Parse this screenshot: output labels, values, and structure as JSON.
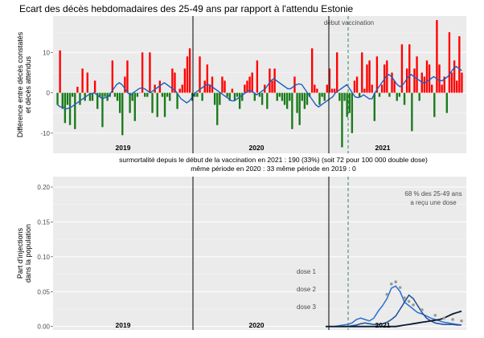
{
  "title": "Ecart des décès hebdomadaires des 25-49 ans par rapport à l'attendu Estonie",
  "annotations": {
    "line1": "surmortalité depuis le début de la vaccination en 2021 : 190  (33%)          (soit 72 pour 100 000 double dose)",
    "line2": "même période en 2020 : 33          même période en 2019 : 0"
  },
  "colors": {
    "excess": "#ff0000",
    "deficit": "#1a7a1a",
    "trend": "#1f5fbf",
    "dose1": "#2a6fcf",
    "dose2": "#1a4f9a",
    "dose3": "#0a1a33",
    "marker": "#999999",
    "pct_label": "#a020c0",
    "vaccination_line": "#2e8b57"
  },
  "chart_data": [
    {
      "type": "bar",
      "ylabel": "Différence entre décès constatés\net décès attendus",
      "ylim": [
        -15,
        19
      ],
      "yticks": [
        -10,
        0,
        10
      ],
      "grid": true,
      "year_labels": [
        "2019",
        "2020",
        "2021"
      ],
      "vaccination_label": "début vaccination",
      "values": [
        -3,
        10.5,
        -4,
        -7.5,
        -3,
        -8,
        -1,
        -9,
        1.5,
        -3,
        6,
        -2,
        5,
        -2,
        -2,
        3,
        -4,
        -1,
        -8.5,
        -1,
        -2,
        -1,
        8,
        -1,
        -2,
        -5,
        -10.5,
        4,
        8,
        -5,
        -2,
        -7,
        -1,
        0,
        10,
        -1,
        -1,
        10,
        -5,
        2,
        -6,
        3,
        -1,
        -6,
        -1,
        -2,
        6,
        5,
        -4,
        1,
        2,
        6,
        9,
        11,
        -2,
        -1,
        -1,
        9,
        -2,
        3,
        7,
        2,
        4,
        -3,
        -8,
        -3,
        4,
        3,
        -1,
        -2,
        1,
        -2,
        -1,
        -4,
        -2,
        2,
        3,
        4,
        5,
        -2,
        8,
        -1,
        -3,
        2,
        -4,
        6,
        3,
        6,
        -2,
        -1,
        -2,
        -3,
        -4,
        -2,
        -9,
        4,
        -5,
        -8,
        -2,
        -4,
        -3,
        -1,
        11,
        2,
        1,
        -3,
        -1,
        -2,
        2,
        6,
        1,
        1,
        10,
        -2,
        -13.5,
        -2,
        -6,
        -5,
        -10,
        3,
        4,
        -1,
        10,
        1,
        7,
        8,
        2,
        -7,
        9,
        -1,
        2,
        7,
        8,
        -1,
        5,
        3,
        -2,
        -1,
        12,
        -3,
        6,
        12,
        -9.5,
        6,
        9,
        -2,
        5,
        4,
        8,
        7,
        2,
        -6,
        18,
        7,
        2,
        4,
        -5,
        15,
        5,
        8,
        3,
        14,
        5
      ],
      "trend": [
        -3,
        -3.5,
        -3.5,
        -4,
        -3.8,
        -3.5,
        -3,
        -2.5,
        -2,
        -1.5,
        -1,
        -0.5,
        -0.2,
        0,
        -0.5,
        -1,
        -1.5,
        -1.2,
        -1,
        0,
        1,
        2,
        2.5,
        2,
        1,
        0,
        -0.5,
        0,
        0.5,
        1,
        1.2,
        1,
        0.5,
        0,
        0.5,
        1,
        1.5,
        2,
        2.5,
        2,
        1.5,
        1,
        0.5,
        -0.5,
        -1.5,
        -2,
        -2.5,
        -2,
        -1,
        0,
        0.5,
        1,
        1.5,
        2,
        2,
        1.5,
        1,
        0.5,
        0,
        -0.5,
        -1,
        -1.5,
        -2,
        -2,
        -1.5,
        -1,
        -0.5,
        0,
        0.5,
        0.5,
        0,
        -0.5,
        0,
        0.5,
        1,
        2,
        3,
        3.5,
        3,
        2.5,
        2,
        1.5,
        1,
        1,
        1.5,
        2,
        2.2,
        2,
        1,
        0,
        -1,
        -2,
        -3,
        -3.5,
        -3,
        -2.5,
        -2,
        -1.5,
        -1,
        0,
        0.5,
        1,
        1.5,
        2,
        1,
        0,
        -1,
        -1.2,
        -1,
        -0.5,
        -1,
        -1.5,
        -1.5,
        0,
        1,
        2,
        3,
        4,
        4.5,
        4,
        3,
        2,
        1.5,
        2,
        3,
        4,
        4.5,
        4,
        3.5,
        3,
        2.5,
        2.5,
        3,
        3.5,
        4,
        3.5,
        3,
        3,
        3.5,
        4,
        5,
        6,
        6.5,
        6,
        5.5
      ]
    },
    {
      "type": "line",
      "ylabel": "Part d'injections\ndans la population",
      "ylim": [
        -0.005,
        0.215
      ],
      "yticks": [
        "0.00",
        "0.05",
        "0.10",
        "0.15",
        "0.20"
      ],
      "grid": true,
      "year_labels": [
        "2019",
        "2020",
        "2021"
      ],
      "pct_label": "68 % des 25-49 ans\na reçu une dose",
      "series": [
        {
          "name": "dose 1",
          "values": [
            0,
            0,
            0,
            0.001,
            0.002,
            0.003,
            0.005,
            0.01,
            0.012,
            0.01,
            0.008,
            0.012,
            0.022,
            0.03,
            0.04,
            0.055,
            0.058,
            0.05,
            0.035,
            0.03,
            0.025,
            0.02,
            0.018,
            0.015,
            0.012,
            0.01,
            0.008,
            0.006,
            0.005,
            0.004,
            0.003,
            0.002
          ]
        },
        {
          "name": "dose 2",
          "values": [
            0,
            0,
            0,
            0,
            0,
            0,
            0.001,
            0.002,
            0.004,
            0.005,
            0.004,
            0.003,
            0.003,
            0.004,
            0.006,
            0.01,
            0.015,
            0.025,
            0.035,
            0.045,
            0.04,
            0.03,
            0.02,
            0.012,
            0.008,
            0.005,
            0.004,
            0.003,
            0.003,
            0.003,
            0.002,
            0.002
          ]
        },
        {
          "name": "dose 3",
          "values": [
            0,
            0,
            0,
            0,
            0,
            0,
            0,
            0,
            0,
            0,
            0,
            0,
            0,
            0,
            0,
            0,
            0,
            0.001,
            0.002,
            0.003,
            0.004,
            0.005,
            0.006,
            0.007,
            0.008,
            0.009,
            0.01,
            0.012,
            0.015,
            0.018,
            0.02,
            0.022
          ]
        }
      ]
    }
  ]
}
